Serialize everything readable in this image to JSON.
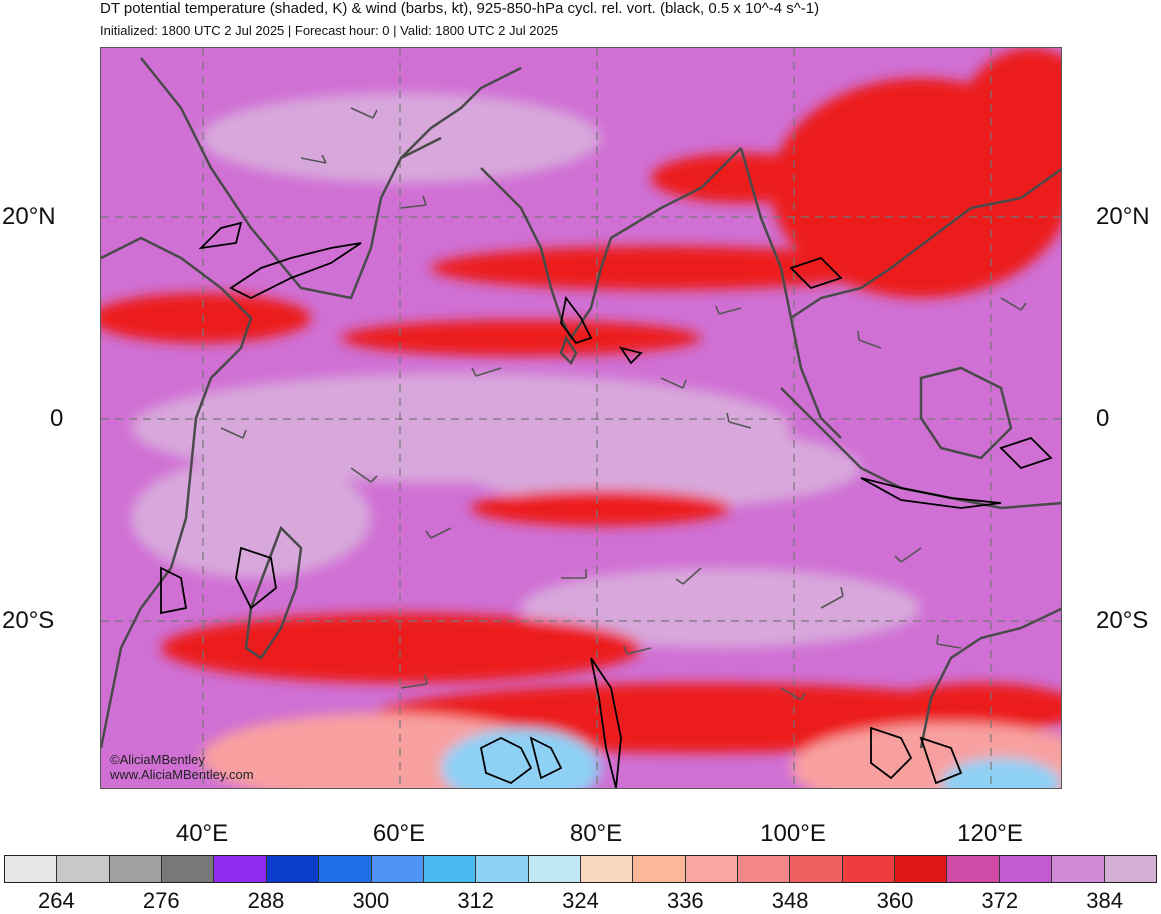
{
  "header": {
    "title": "DT potential temperature (shaded, K) & wind (barbs, kt), 925-850-hPa cycl. rel. vort. (black, 0.5 x 10^-4 s^-1)",
    "subtitle": "Initialized: 1800 UTC 2 Jul 2025 | Forecast hour: 0 | Valid: 1800 UTC 2 Jul 2025"
  },
  "map": {
    "lat_labels": [
      "20°N",
      "0",
      "20°S"
    ],
    "lon_labels": [
      "40°E",
      "60°E",
      "80°E",
      "100°E",
      "120°E"
    ],
    "credit_lines": [
      "©AliciaMBentley",
      "www.AliciaMBentley.com"
    ]
  },
  "colorbar": {
    "labels": [
      "264",
      "276",
      "288",
      "300",
      "312",
      "324",
      "336",
      "348",
      "360",
      "372",
      "384"
    ],
    "colors": [
      "#e6e6e6",
      "#c8c8c8",
      "#a0a0a0",
      "#787878",
      "#8f2bf0",
      "#0b3ccc",
      "#1f6ee8",
      "#4f93f5",
      "#47b8f0",
      "#8fd0f5",
      "#bfe8f5",
      "#fbd8c0",
      "#fbb898",
      "#f8a8a0",
      "#f48888",
      "#f05f62",
      "#f03c3c",
      "#e01818",
      "#d04aa8",
      "#c25ad0",
      "#d08ad8",
      "#d4b0d4"
    ]
  },
  "field_colors": {
    "background": "#d070d4",
    "pale": "#d8a8dc",
    "red": "#ec1c1c",
    "salmon": "#f8a0a0",
    "light_blue": "#8fd0f5",
    "contour": "#000000",
    "coast": "#4a4a4a"
  }
}
